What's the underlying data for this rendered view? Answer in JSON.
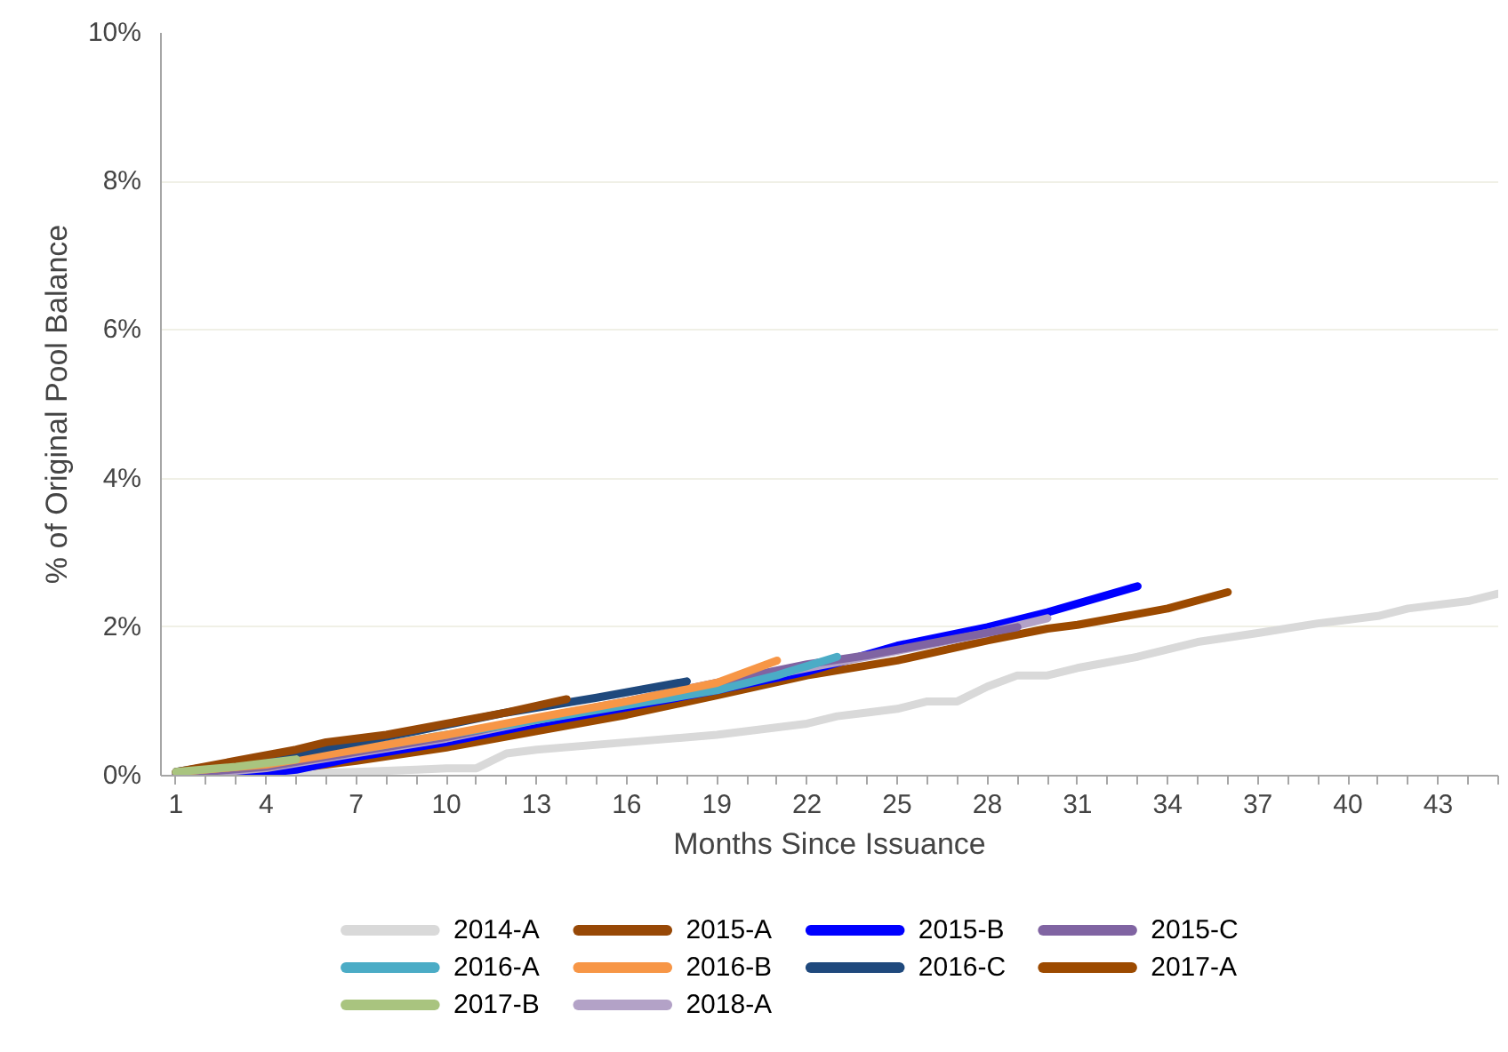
{
  "chart_data": {
    "type": "line",
    "xlabel": "Months Since Issuance",
    "ylabel": "% of Original Pool Balance",
    "xlim": [
      0.5,
      45
    ],
    "ylim": [
      0,
      10
    ],
    "xticks": [
      1,
      {
        "value": 2,
        "label": null
      },
      {
        "value": 3,
        "label": null
      },
      4,
      {
        "value": 5,
        "label": null
      },
      {
        "value": 6,
        "label": null
      },
      7,
      {
        "value": 8,
        "label": null
      },
      {
        "value": 9,
        "label": null
      },
      10,
      {
        "value": 11,
        "label": null
      },
      {
        "value": 12,
        "label": null
      },
      13,
      {
        "value": 14,
        "label": null
      },
      {
        "value": 15,
        "label": null
      },
      16,
      {
        "value": 17,
        "label": null
      },
      {
        "value": 18,
        "label": null
      },
      19,
      {
        "value": 20,
        "label": null
      },
      {
        "value": 21,
        "label": null
      },
      22,
      {
        "value": 23,
        "label": null
      },
      {
        "value": 24,
        "label": null
      },
      25,
      {
        "value": 26,
        "label": null
      },
      {
        "value": 27,
        "label": null
      },
      28,
      {
        "value": 29,
        "label": null
      },
      {
        "value": 30,
        "label": null
      },
      31,
      {
        "value": 32,
        "label": null
      },
      {
        "value": 33,
        "label": null
      },
      34,
      {
        "value": 35,
        "label": null
      },
      {
        "value": 36,
        "label": null
      },
      37,
      {
        "value": 38,
        "label": null
      },
      {
        "value": 39,
        "label": null
      },
      40,
      {
        "value": 41,
        "label": null
      },
      {
        "value": 42,
        "label": null
      },
      43,
      {
        "value": 44,
        "label": null
      },
      {
        "value": 45,
        "label": null
      }
    ],
    "yticks": [
      {
        "value": 0,
        "label": "0%"
      },
      {
        "value": 2,
        "label": "2%"
      },
      {
        "value": 4,
        "label": "4%"
      },
      {
        "value": 6,
        "label": "6%"
      },
      {
        "value": 8,
        "label": "8%"
      },
      {
        "value": 10,
        "label": "10%"
      }
    ],
    "grid": "y",
    "legend": "bottom",
    "line_style": "solid",
    "marker": "none",
    "series": [
      {
        "name": "2014-A",
        "color": "#d9d9d9",
        "x": [
          1,
          4,
          7,
          9,
          10,
          11,
          12,
          13,
          16,
          19,
          22,
          23,
          24,
          25,
          26,
          27,
          28,
          29,
          30,
          31,
          33,
          34,
          35,
          37,
          39,
          40,
          41,
          42,
          44,
          45
        ],
        "values": [
          0,
          0.02,
          0.05,
          0.08,
          0.1,
          0.1,
          0.3,
          0.35,
          0.45,
          0.55,
          0.7,
          0.8,
          0.85,
          0.9,
          1.0,
          1.0,
          1.2,
          1.35,
          1.35,
          1.45,
          1.6,
          1.7,
          1.8,
          1.92,
          2.05,
          2.1,
          2.15,
          2.25,
          2.35,
          2.45
        ]
      },
      {
        "name": "2015-A",
        "color": "#974806",
        "x": [
          1,
          3,
          5,
          6,
          8,
          10,
          12,
          14
        ],
        "values": [
          0.05,
          0.2,
          0.35,
          0.45,
          0.55,
          0.7,
          0.85,
          1.03
        ]
      },
      {
        "name": "2015-B",
        "color": "#0000ff",
        "x": [
          1,
          3,
          5,
          7,
          10,
          13,
          16,
          19,
          22,
          25,
          28,
          30,
          33
        ],
        "values": [
          0,
          0,
          0.08,
          0.25,
          0.45,
          0.7,
          0.92,
          1.15,
          1.4,
          1.75,
          2.0,
          2.2,
          2.55
        ]
      },
      {
        "name": "2015-C",
        "color": "#8064a2",
        "x": [
          1,
          4,
          7,
          10,
          13,
          16,
          19,
          22,
          24,
          27,
          29
        ],
        "values": [
          0.02,
          0.12,
          0.32,
          0.52,
          0.77,
          1.0,
          1.25,
          1.5,
          1.62,
          1.85,
          2.0
        ]
      },
      {
        "name": "2016-A",
        "color": "#4bacc6",
        "x": [
          5,
          7,
          10,
          13,
          16,
          19,
          21,
          23
        ],
        "values": [
          0.25,
          0.35,
          0.55,
          0.75,
          0.95,
          1.15,
          1.35,
          1.6
        ]
      },
      {
        "name": "2016-B",
        "color": "#f79646",
        "x": [
          1,
          4,
          7,
          10,
          13,
          16,
          19,
          21
        ],
        "values": [
          0.05,
          0.15,
          0.35,
          0.55,
          0.78,
          1.0,
          1.25,
          1.55
        ]
      },
      {
        "name": "2016-C",
        "color": "#1f497d",
        "x": [
          1,
          5,
          9,
          12,
          15,
          18
        ],
        "values": [
          0.05,
          0.3,
          0.6,
          0.85,
          1.05,
          1.27
        ]
      },
      {
        "name": "2017-A",
        "color": "#9c4a00",
        "x": [
          1,
          4,
          7,
          10,
          13,
          16,
          19,
          22,
          25,
          28,
          30,
          31,
          34,
          36
        ],
        "values": [
          0,
          0.05,
          0.2,
          0.38,
          0.6,
          0.82,
          1.08,
          1.35,
          1.55,
          1.82,
          1.98,
          2.03,
          2.25,
          2.47
        ]
      },
      {
        "name": "2017-B",
        "color": "#a9c47f",
        "x": [
          1,
          3,
          5
        ],
        "values": [
          0.05,
          0.12,
          0.22
        ]
      },
      {
        "name": "2018-A",
        "color": "#b3a2c7",
        "x": [
          1,
          4,
          7,
          10,
          13,
          16,
          19,
          22,
          25,
          28,
          30
        ],
        "values": [
          0,
          0.1,
          0.3,
          0.5,
          0.75,
          0.97,
          1.2,
          1.45,
          1.68,
          1.92,
          2.12
        ]
      }
    ]
  }
}
